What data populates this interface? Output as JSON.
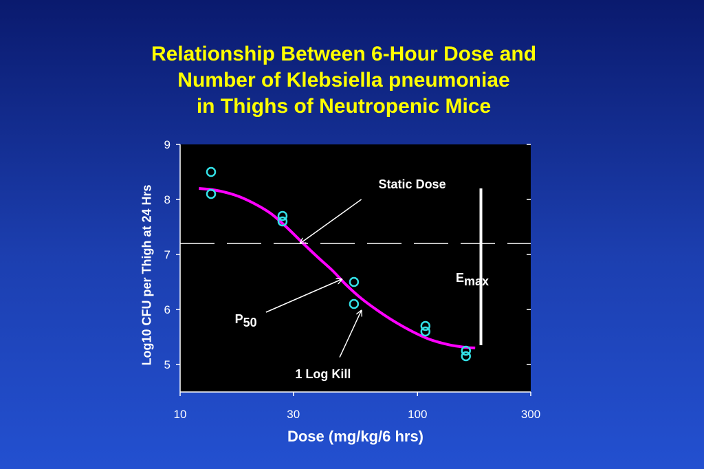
{
  "title_lines": [
    "Relationship Between 6-Hour Dose and",
    "Number of Klebsiella pneumoniae",
    "in Thighs of Neutropenic Mice"
  ],
  "chart_data": {
    "type": "scatter",
    "xlabel": "Dose (mg/kg/6 hrs)",
    "ylabel": "Log10 CFU per Thigh at 24 Hrs",
    "x_scale": "log",
    "xlim": [
      10,
      300
    ],
    "ylim": [
      4.5,
      9
    ],
    "x_ticks": [
      10,
      30,
      100,
      300
    ],
    "y_ticks": [
      5,
      6,
      7,
      8,
      9
    ],
    "points": [
      {
        "x": 13.5,
        "y": 8.5
      },
      {
        "x": 13.5,
        "y": 8.1
      },
      {
        "x": 27,
        "y": 7.7
      },
      {
        "x": 27,
        "y": 7.6
      },
      {
        "x": 54,
        "y": 6.5
      },
      {
        "x": 54,
        "y": 6.1
      },
      {
        "x": 108,
        "y": 5.7
      },
      {
        "x": 108,
        "y": 5.6
      },
      {
        "x": 160,
        "y": 5.25
      },
      {
        "x": 160,
        "y": 5.15
      }
    ],
    "fit_curve": [
      {
        "x": 12,
        "y": 8.2
      },
      {
        "x": 14,
        "y": 8.17
      },
      {
        "x": 17,
        "y": 8.08
      },
      {
        "x": 20,
        "y": 7.95
      },
      {
        "x": 24,
        "y": 7.75
      },
      {
        "x": 28,
        "y": 7.5
      },
      {
        "x": 33,
        "y": 7.2
      },
      {
        "x": 38,
        "y": 6.95
      },
      {
        "x": 44,
        "y": 6.7
      },
      {
        "x": 50,
        "y": 6.45
      },
      {
        "x": 58,
        "y": 6.2
      },
      {
        "x": 68,
        "y": 5.98
      },
      {
        "x": 80,
        "y": 5.78
      },
      {
        "x": 95,
        "y": 5.6
      },
      {
        "x": 112,
        "y": 5.46
      },
      {
        "x": 135,
        "y": 5.36
      },
      {
        "x": 160,
        "y": 5.31
      },
      {
        "x": 175,
        "y": 5.3
      }
    ],
    "static_line_y": 7.2,
    "emax_range": [
      5.35,
      8.2
    ],
    "emax_x": 185,
    "colors": {
      "points": "#33e0e6",
      "curve": "#ff00ff",
      "plot_bg": "#000000",
      "text": "#ffffff"
    },
    "annotations": {
      "static_dose": {
        "label": "Static Dose",
        "label_at": {
          "x": 95,
          "y": 8.2
        },
        "arrow_from": {
          "x": 58,
          "y": 8.0
        },
        "arrow_to": {
          "x": 32,
          "y": 7.2
        }
      },
      "p50": {
        "label_main": "P",
        "label_sub": "50",
        "label_at": {
          "x": 17,
          "y": 5.75
        },
        "arrow_from": {
          "x": 23,
          "y": 5.95
        },
        "arrow_to": {
          "x": 48,
          "y": 6.55
        }
      },
      "log_kill": {
        "label": "1 Log Kill",
        "label_at": {
          "x": 40,
          "y": 4.75
        },
        "arrow_from": {
          "x": 47,
          "y": 5.13
        },
        "arrow_to": {
          "x": 58,
          "y": 5.98
        }
      },
      "emax": {
        "label_main": "E",
        "label_sub": "max",
        "label_at": {
          "x": 145,
          "y": 6.5
        }
      }
    }
  }
}
